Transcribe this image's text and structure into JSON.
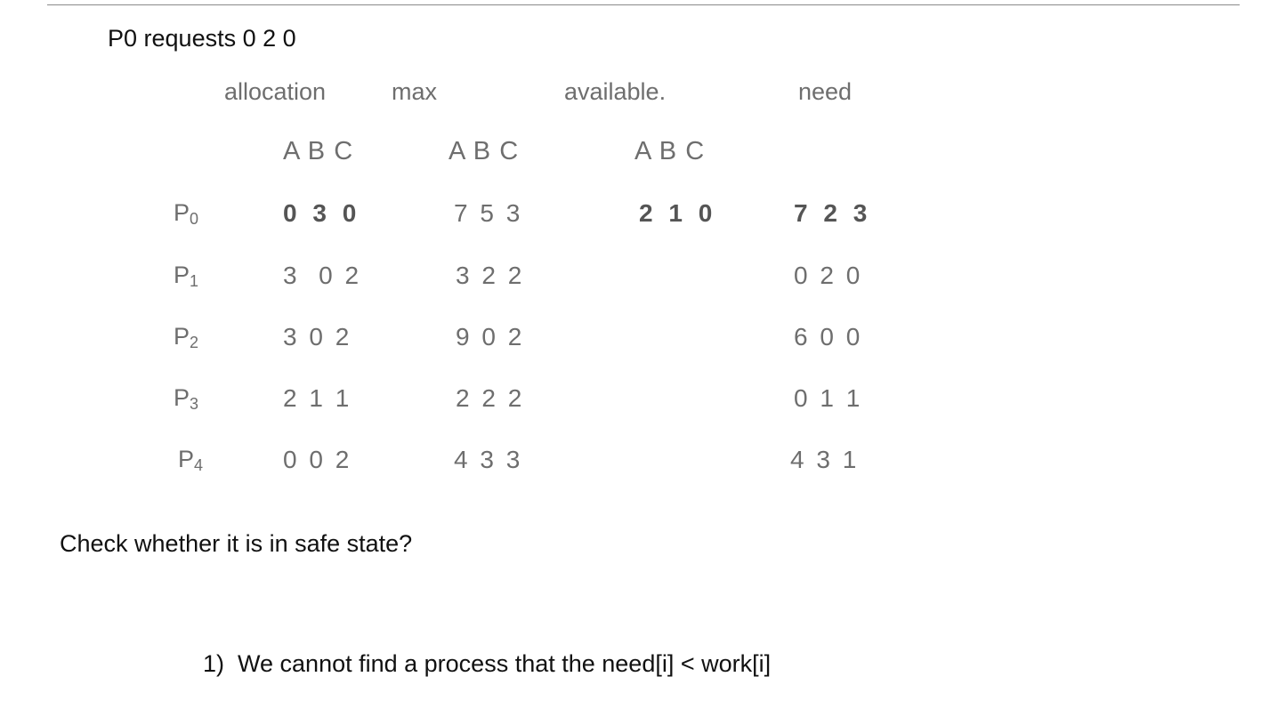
{
  "title": "P0 requests 0 2 0",
  "columns": {
    "allocation": "allocation",
    "max": "max",
    "available": "available.",
    "need": "need"
  },
  "subheaders": {
    "allocation": "A B C",
    "max": "A B C",
    "available": "A B C"
  },
  "processes": [
    {
      "label": "P",
      "index": "0",
      "allocation": "0 3 0",
      "max": "7 5 3",
      "available": "2 1 0",
      "need": "7 2 3"
    },
    {
      "label": "P",
      "index": "1",
      "allocation": "3  0 2",
      "max": "3 2 2",
      "available": "",
      "need": "0 2 0"
    },
    {
      "label": "P",
      "index": "2",
      "allocation": "3 0 2",
      "max": "9 0 2",
      "available": "",
      "need": "6 0 0"
    },
    {
      "label": "P",
      "index": "3",
      "allocation": "2 1 1",
      "max": "2 2 2",
      "available": "",
      "need": "0 1 1"
    },
    {
      "label": "P",
      "index": "4",
      "allocation": "0 0 2",
      "max": "4 3 3",
      "available": "",
      "need": "4 3 1"
    }
  ],
  "question": "Check whether it is in safe state?",
  "steps": [
    {
      "number": "1)",
      "text": "We cannot find a process that the need[i] < work[i]"
    }
  ]
}
